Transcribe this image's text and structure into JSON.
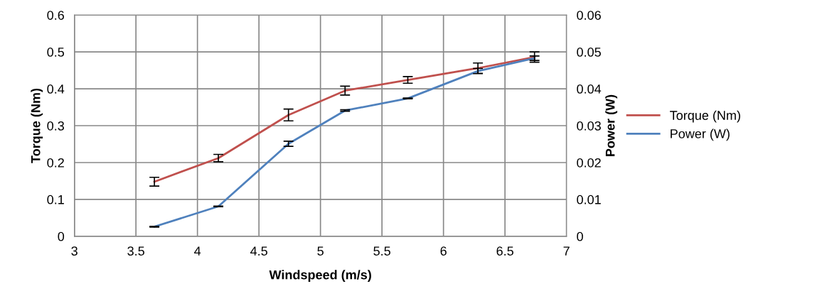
{
  "chart_data": {
    "type": "line",
    "xlabel": "Windspeed (m/s)",
    "ylabel": "Torque (Nm)",
    "y2label": "Power (W)",
    "x": [
      3.65,
      4.17,
      4.74,
      5.2,
      5.71,
      6.28,
      6.74
    ],
    "series": [
      {
        "name": "Torque (Nm)",
        "color": "#c0504d",
        "values": [
          0.148,
          0.212,
          0.329,
          0.395,
          0.424,
          0.456,
          0.486
        ],
        "errors": [
          0.012,
          0.01,
          0.016,
          0.012,
          0.009,
          0.014,
          0.014
        ]
      },
      {
        "name": "Power (W)",
        "color": "#4f81bd",
        "axis": "y2",
        "values": [
          0.0026,
          0.0081,
          0.0251,
          0.0341,
          0.0374,
          0.0448,
          0.0483
        ],
        "errors": [
          0.0001,
          0.0001,
          0.0007,
          0.0002,
          0.0001,
          0.0007,
          0.0006
        ]
      }
    ],
    "xlim": [
      3,
      7
    ],
    "xticks": [
      3,
      3.5,
      4,
      4.5,
      5,
      5.5,
      6,
      6.5,
      7
    ],
    "ylim": [
      0,
      0.6
    ],
    "yticks": [
      0,
      0.1,
      0.2,
      0.3,
      0.4,
      0.5,
      0.6
    ],
    "y2lim": [
      0,
      0.06
    ],
    "y2ticks": [
      0,
      0.01,
      0.02,
      0.03,
      0.04,
      0.05,
      0.06
    ],
    "grid": true,
    "legend": "right",
    "marker": "none",
    "line_style": "solid"
  }
}
